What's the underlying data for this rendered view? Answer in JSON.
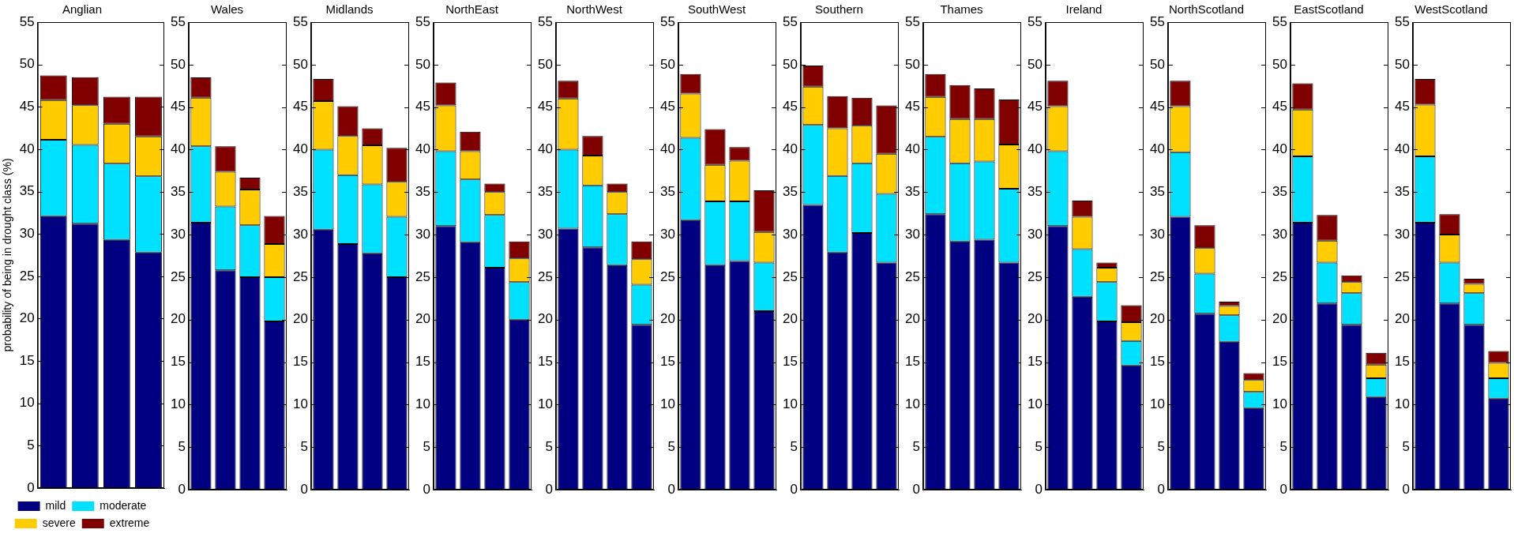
{
  "chart_data": [
    {
      "type": "bar",
      "title": "Anglian",
      "ylabel": "probability of being in drought class (%)",
      "legend": "bottom",
      "stacked": true,
      "tick_labels": "y",
      "categories": [
        null,
        null,
        null,
        null
      ],
      "ylim": [
        0,
        55
      ],
      "yticks": [
        0,
        5,
        10,
        15,
        20,
        25,
        30,
        35,
        40,
        45,
        50,
        55
      ],
      "series": [
        {
          "name": "mild",
          "color": "#000080",
          "values": [
            32.1,
            31.2,
            29.3,
            27.8
          ]
        },
        {
          "name": "moderate",
          "color": "#00e0ff",
          "values": [
            9.0,
            9.3,
            9.0,
            9.0
          ]
        },
        {
          "name": "severe",
          "color": "#ffcc00",
          "values": [
            4.7,
            4.7,
            4.7,
            4.7
          ]
        },
        {
          "name": "extreme",
          "color": "#800000",
          "values": [
            2.9,
            3.3,
            3.2,
            4.7
          ]
        }
      ]
    },
    {
      "type": "bar",
      "title": "Wales",
      "stacked": true,
      "tick_labels": "y",
      "categories": [
        null,
        null,
        null,
        null
      ],
      "ylim": [
        0,
        55
      ],
      "yticks": [
        0,
        5,
        10,
        15,
        20,
        25,
        30,
        35,
        40,
        45,
        50,
        55
      ],
      "series": [
        {
          "color": "#000080",
          "values": [
            31.4,
            25.8,
            25.0,
            19.8
          ]
        },
        {
          "color": "#00e0ff",
          "values": [
            9.0,
            7.5,
            6.1,
            5.2
          ]
        },
        {
          "color": "#ffcc00",
          "values": [
            5.7,
            4.1,
            4.2,
            3.9
          ]
        },
        {
          "color": "#800000",
          "values": [
            2.4,
            3.0,
            1.4,
            3.3
          ]
        }
      ]
    },
    {
      "type": "bar",
      "title": "Midlands",
      "stacked": true,
      "tick_labels": "y",
      "categories": [
        null,
        null,
        null,
        null
      ],
      "ylim": [
        0,
        55
      ],
      "yticks": [
        0,
        5,
        10,
        15,
        20,
        25,
        30,
        35,
        40,
        45,
        50,
        55
      ],
      "series": [
        {
          "color": "#000080",
          "values": [
            30.6,
            28.9,
            27.8,
            25.0
          ]
        },
        {
          "color": "#00e0ff",
          "values": [
            9.4,
            8.1,
            8.1,
            7.1
          ]
        },
        {
          "color": "#ffcc00",
          "values": [
            5.7,
            4.6,
            4.6,
            4.1
          ]
        },
        {
          "color": "#800000",
          "values": [
            2.6,
            3.5,
            2.0,
            4.0
          ]
        }
      ]
    },
    {
      "type": "bar",
      "title": "NorthEast",
      "stacked": true,
      "tick_labels": "y",
      "categories": [
        null,
        null,
        null,
        null
      ],
      "ylim": [
        0,
        55
      ],
      "yticks": [
        0,
        5,
        10,
        15,
        20,
        25,
        30,
        35,
        40,
        45,
        50,
        55
      ],
      "series": [
        {
          "color": "#000080",
          "values": [
            31.0,
            29.1,
            26.1,
            20.0
          ]
        },
        {
          "color": "#00e0ff",
          "values": [
            8.8,
            7.4,
            6.2,
            4.4
          ]
        },
        {
          "color": "#ffcc00",
          "values": [
            5.4,
            3.3,
            2.7,
            2.8
          ]
        },
        {
          "color": "#800000",
          "values": [
            2.7,
            2.3,
            1.0,
            2.0
          ]
        }
      ]
    },
    {
      "type": "bar",
      "title": "NorthWest",
      "stacked": true,
      "tick_labels": "y",
      "categories": [
        null,
        null,
        null,
        null
      ],
      "ylim": [
        0,
        55
      ],
      "yticks": [
        0,
        5,
        10,
        15,
        20,
        25,
        30,
        35,
        40,
        45,
        50,
        55
      ],
      "series": [
        {
          "color": "#000080",
          "values": [
            30.7,
            28.5,
            26.4,
            19.4
          ]
        },
        {
          "color": "#00e0ff",
          "values": [
            9.3,
            7.3,
            6.0,
            4.7
          ]
        },
        {
          "color": "#ffcc00",
          "values": [
            6.0,
            3.5,
            2.6,
            3.0
          ]
        },
        {
          "color": "#800000",
          "values": [
            2.1,
            2.3,
            1.0,
            2.1
          ]
        }
      ]
    },
    {
      "type": "bar",
      "title": "SouthWest",
      "stacked": true,
      "tick_labels": "y",
      "categories": [
        null,
        null,
        null,
        null
      ],
      "ylim": [
        0,
        55
      ],
      "yticks": [
        0,
        5,
        10,
        15,
        20,
        25,
        30,
        35,
        40,
        45,
        50,
        55
      ],
      "series": [
        {
          "color": "#000080",
          "values": [
            31.7,
            26.4,
            26.9,
            21.0
          ]
        },
        {
          "color": "#00e0ff",
          "values": [
            9.7,
            7.5,
            7.0,
            5.7
          ]
        },
        {
          "color": "#ffcc00",
          "values": [
            5.2,
            4.3,
            4.8,
            3.6
          ]
        },
        {
          "color": "#800000",
          "values": [
            2.3,
            4.2,
            1.6,
            4.9
          ]
        }
      ]
    },
    {
      "type": "bar",
      "title": "Southern",
      "stacked": true,
      "tick_labels": "y",
      "categories": [
        null,
        null,
        null,
        null
      ],
      "ylim": [
        0,
        55
      ],
      "yticks": [
        0,
        5,
        10,
        15,
        20,
        25,
        30,
        35,
        40,
        45,
        50,
        55
      ],
      "series": [
        {
          "color": "#000080",
          "values": [
            33.5,
            27.9,
            30.2,
            26.7
          ]
        },
        {
          "color": "#00e0ff",
          "values": [
            9.4,
            9.0,
            8.2,
            8.1
          ]
        },
        {
          "color": "#ffcc00",
          "values": [
            4.5,
            5.6,
            4.4,
            4.7
          ]
        },
        {
          "color": "#800000",
          "values": [
            2.5,
            3.8,
            3.3,
            5.7
          ]
        }
      ]
    },
    {
      "type": "bar",
      "title": "Thames",
      "stacked": true,
      "tick_labels": "y",
      "categories": [
        null,
        null,
        null,
        null
      ],
      "ylim": [
        0,
        55
      ],
      "yticks": [
        0,
        5,
        10,
        15,
        20,
        25,
        30,
        35,
        40,
        45,
        50,
        55
      ],
      "series": [
        {
          "color": "#000080",
          "values": [
            32.4,
            29.2,
            29.4,
            26.7
          ]
        },
        {
          "color": "#00e0ff",
          "values": [
            9.1,
            9.2,
            9.2,
            8.7
          ]
        },
        {
          "color": "#ffcc00",
          "values": [
            4.7,
            5.2,
            5.0,
            5.2
          ]
        },
        {
          "color": "#800000",
          "values": [
            2.7,
            4.0,
            3.6,
            5.3
          ]
        }
      ]
    },
    {
      "type": "bar",
      "title": "Ireland",
      "stacked": true,
      "tick_labels": "y",
      "categories": [
        null,
        null,
        null,
        null
      ],
      "ylim": [
        0,
        55
      ],
      "yticks": [
        0,
        5,
        10,
        15,
        20,
        25,
        30,
        35,
        40,
        45,
        50,
        55
      ],
      "series": [
        {
          "color": "#000080",
          "values": [
            31.0,
            22.7,
            19.8,
            14.6
          ]
        },
        {
          "color": "#00e0ff",
          "values": [
            8.8,
            5.6,
            4.6,
            2.9
          ]
        },
        {
          "color": "#ffcc00",
          "values": [
            5.3,
            3.8,
            1.7,
            2.2
          ]
        },
        {
          "color": "#800000",
          "values": [
            3.0,
            1.9,
            0.6,
            2.0
          ]
        }
      ]
    },
    {
      "type": "bar",
      "title": "NorthScotland",
      "stacked": true,
      "tick_labels": "y",
      "categories": [
        null,
        null,
        null,
        null
      ],
      "ylim": [
        0,
        55
      ],
      "yticks": [
        0,
        5,
        10,
        15,
        20,
        25,
        30,
        35,
        40,
        45,
        50,
        55
      ],
      "series": [
        {
          "color": "#000080",
          "values": [
            32.1,
            20.7,
            17.4,
            9.6
          ]
        },
        {
          "color": "#00e0ff",
          "values": [
            7.6,
            4.7,
            3.1,
            1.9
          ]
        },
        {
          "color": "#ffcc00",
          "values": [
            5.4,
            3.0,
            1.1,
            1.4
          ]
        },
        {
          "color": "#800000",
          "values": [
            3.0,
            2.7,
            0.5,
            0.8
          ]
        }
      ]
    },
    {
      "type": "bar",
      "title": "EastScotland",
      "stacked": true,
      "tick_labels": "y",
      "categories": [
        null,
        null,
        null,
        null
      ],
      "ylim": [
        0,
        55
      ],
      "yticks": [
        0,
        5,
        10,
        15,
        20,
        25,
        30,
        35,
        40,
        45,
        50,
        55
      ],
      "series": [
        {
          "color": "#000080",
          "values": [
            31.4,
            21.9,
            19.4,
            10.9
          ]
        },
        {
          "color": "#00e0ff",
          "values": [
            7.8,
            4.8,
            3.7,
            2.2
          ]
        },
        {
          "color": "#ffcc00",
          "values": [
            5.5,
            2.6,
            1.3,
            1.6
          ]
        },
        {
          "color": "#800000",
          "values": [
            3.1,
            3.0,
            0.8,
            1.4
          ]
        }
      ]
    },
    {
      "type": "bar",
      "title": "WestScotland",
      "stacked": true,
      "tick_labels": "y",
      "categories": [
        null,
        null,
        null,
        null
      ],
      "ylim": [
        0,
        55
      ],
      "yticks": [
        0,
        5,
        10,
        15,
        20,
        25,
        30,
        35,
        40,
        45,
        50,
        55
      ],
      "series": [
        {
          "color": "#000080",
          "values": [
            31.4,
            21.9,
            19.4,
            10.7
          ]
        },
        {
          "color": "#00e0ff",
          "values": [
            7.8,
            4.8,
            3.7,
            2.4
          ]
        },
        {
          "color": "#ffcc00",
          "values": [
            6.1,
            3.3,
            1.1,
            1.8
          ]
        },
        {
          "color": "#800000",
          "values": [
            3.0,
            2.4,
            0.6,
            1.4
          ]
        }
      ]
    }
  ]
}
